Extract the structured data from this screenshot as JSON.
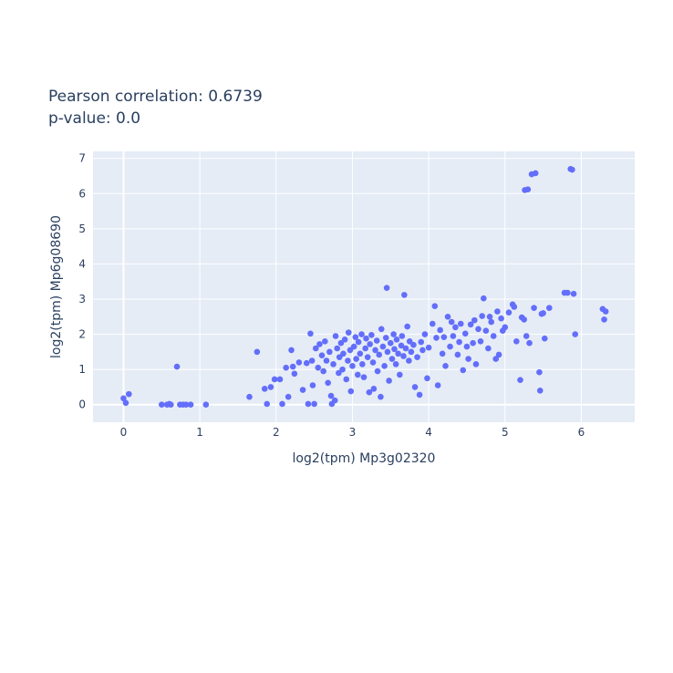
{
  "chart_data": {
    "type": "scatter",
    "title_lines": [
      "Pearson correlation: 0.6739",
      "p-value: 0.0"
    ],
    "xlabel": "log2(tpm) Mp3g02320",
    "ylabel": "log2(tpm) Mp6g08690",
    "xlim": [
      -0.4,
      6.7
    ],
    "ylim": [
      -0.5,
      7.2
    ],
    "xticks": [
      0,
      1,
      2,
      3,
      4,
      5,
      6
    ],
    "yticks": [
      0,
      1,
      2,
      3,
      4,
      5,
      6,
      7
    ],
    "grid": true,
    "marker_color": "#636efa",
    "plot_bgcolor": "#e5ecf6",
    "series": [
      {
        "points": [
          [
            0.0,
            0.18
          ],
          [
            0.03,
            0.05
          ],
          [
            0.07,
            0.3
          ],
          [
            0.5,
            0.0
          ],
          [
            0.57,
            0.0
          ],
          [
            0.6,
            0.02
          ],
          [
            0.62,
            0.0
          ],
          [
            0.7,
            1.08
          ],
          [
            0.74,
            0.0
          ],
          [
            0.78,
            0.0
          ],
          [
            0.82,
            0.0
          ],
          [
            0.88,
            0.0
          ],
          [
            1.08,
            0.0
          ],
          [
            1.65,
            0.22
          ],
          [
            1.75,
            1.5
          ],
          [
            1.85,
            0.45
          ],
          [
            1.88,
            0.02
          ],
          [
            1.93,
            0.5
          ],
          [
            1.98,
            0.72
          ],
          [
            2.05,
            0.72
          ],
          [
            2.08,
            0.02
          ],
          [
            2.13,
            1.05
          ],
          [
            2.16,
            0.22
          ],
          [
            2.2,
            1.55
          ],
          [
            2.22,
            1.08
          ],
          [
            2.24,
            0.88
          ],
          [
            2.3,
            1.2
          ],
          [
            2.35,
            0.42
          ],
          [
            2.4,
            1.18
          ],
          [
            2.42,
            0.02
          ],
          [
            2.45,
            2.02
          ],
          [
            2.47,
            1.25
          ],
          [
            2.48,
            0.55
          ],
          [
            2.5,
            0.02
          ],
          [
            2.52,
            1.6
          ],
          [
            2.55,
            1.05
          ],
          [
            2.57,
            1.72
          ],
          [
            2.6,
            1.4
          ],
          [
            2.62,
            0.95
          ],
          [
            2.64,
            1.8
          ],
          [
            2.66,
            1.25
          ],
          [
            2.68,
            0.62
          ],
          [
            2.7,
            1.5
          ],
          [
            2.72,
            0.25
          ],
          [
            2.73,
            0.02
          ],
          [
            2.75,
            1.15
          ],
          [
            2.77,
            0.12
          ],
          [
            2.78,
            1.95
          ],
          [
            2.8,
            1.6
          ],
          [
            2.82,
            0.9
          ],
          [
            2.83,
            1.35
          ],
          [
            2.85,
            1.75
          ],
          [
            2.87,
            1.0
          ],
          [
            2.88,
            1.45
          ],
          [
            2.9,
            1.85
          ],
          [
            2.92,
            0.72
          ],
          [
            2.94,
            1.25
          ],
          [
            2.95,
            2.05
          ],
          [
            2.97,
            1.55
          ],
          [
            2.98,
            0.38
          ],
          [
            3.0,
            1.1
          ],
          [
            3.02,
            1.65
          ],
          [
            3.04,
            1.92
          ],
          [
            3.05,
            1.3
          ],
          [
            3.07,
            0.85
          ],
          [
            3.08,
            1.78
          ],
          [
            3.1,
            1.45
          ],
          [
            3.12,
            2.0
          ],
          [
            3.13,
            1.15
          ],
          [
            3.15,
            0.78
          ],
          [
            3.17,
            1.6
          ],
          [
            3.18,
            1.88
          ],
          [
            3.2,
            1.35
          ],
          [
            3.22,
            0.35
          ],
          [
            3.23,
            1.72
          ],
          [
            3.25,
            1.98
          ],
          [
            3.27,
            1.2
          ],
          [
            3.28,
            0.45
          ],
          [
            3.3,
            1.55
          ],
          [
            3.32,
            1.82
          ],
          [
            3.33,
            0.95
          ],
          [
            3.35,
            1.42
          ],
          [
            3.37,
            0.22
          ],
          [
            3.38,
            2.15
          ],
          [
            3.4,
            1.65
          ],
          [
            3.42,
            1.1
          ],
          [
            3.44,
            1.9
          ],
          [
            3.45,
            3.32
          ],
          [
            3.46,
            1.5
          ],
          [
            3.48,
            0.68
          ],
          [
            3.5,
            1.75
          ],
          [
            3.52,
            1.3
          ],
          [
            3.54,
            2.0
          ],
          [
            3.55,
            1.58
          ],
          [
            3.57,
            1.15
          ],
          [
            3.58,
            1.85
          ],
          [
            3.6,
            1.45
          ],
          [
            3.62,
            0.85
          ],
          [
            3.64,
            1.68
          ],
          [
            3.65,
            1.95
          ],
          [
            3.67,
            1.38
          ],
          [
            3.68,
            3.12
          ],
          [
            3.7,
            1.6
          ],
          [
            3.72,
            2.22
          ],
          [
            3.74,
            1.25
          ],
          [
            3.75,
            1.8
          ],
          [
            3.77,
            1.5
          ],
          [
            3.8,
            1.7
          ],
          [
            3.82,
            0.5
          ],
          [
            3.85,
            1.35
          ],
          [
            3.88,
            0.28
          ],
          [
            3.9,
            1.78
          ],
          [
            3.92,
            1.55
          ],
          [
            3.95,
            2.0
          ],
          [
            3.98,
            0.75
          ],
          [
            4.0,
            1.62
          ],
          [
            4.05,
            2.3
          ],
          [
            4.08,
            2.8
          ],
          [
            4.1,
            1.9
          ],
          [
            4.12,
            0.55
          ],
          [
            4.15,
            2.12
          ],
          [
            4.18,
            1.45
          ],
          [
            4.2,
            1.92
          ],
          [
            4.22,
            1.1
          ],
          [
            4.25,
            2.5
          ],
          [
            4.28,
            1.65
          ],
          [
            4.3,
            2.35
          ],
          [
            4.32,
            1.95
          ],
          [
            4.35,
            2.2
          ],
          [
            4.38,
            1.42
          ],
          [
            4.4,
            1.78
          ],
          [
            4.42,
            2.3
          ],
          [
            4.45,
            0.98
          ],
          [
            4.48,
            2.02
          ],
          [
            4.5,
            1.65
          ],
          [
            4.52,
            1.3
          ],
          [
            4.55,
            2.28
          ],
          [
            4.58,
            1.75
          ],
          [
            4.6,
            2.4
          ],
          [
            4.62,
            1.15
          ],
          [
            4.65,
            2.15
          ],
          [
            4.68,
            1.8
          ],
          [
            4.7,
            2.52
          ],
          [
            4.72,
            3.02
          ],
          [
            4.75,
            2.1
          ],
          [
            4.78,
            1.6
          ],
          [
            4.8,
            2.5
          ],
          [
            4.82,
            2.35
          ],
          [
            4.85,
            1.95
          ],
          [
            4.88,
            1.3
          ],
          [
            4.9,
            2.65
          ],
          [
            4.92,
            1.42
          ],
          [
            4.95,
            2.45
          ],
          [
            4.97,
            2.1
          ],
          [
            5.0,
            2.2
          ],
          [
            5.05,
            2.62
          ],
          [
            5.1,
            2.85
          ],
          [
            5.12,
            2.78
          ],
          [
            5.15,
            1.8
          ],
          [
            5.2,
            0.7
          ],
          [
            5.22,
            2.48
          ],
          [
            5.25,
            2.42
          ],
          [
            5.26,
            6.1
          ],
          [
            5.28,
            1.95
          ],
          [
            5.3,
            6.12
          ],
          [
            5.32,
            1.75
          ],
          [
            5.35,
            6.55
          ],
          [
            5.38,
            2.75
          ],
          [
            5.4,
            6.58
          ],
          [
            5.45,
            0.92
          ],
          [
            5.46,
            0.4
          ],
          [
            5.48,
            2.58
          ],
          [
            5.5,
            2.6
          ],
          [
            5.52,
            1.88
          ],
          [
            5.58,
            2.75
          ],
          [
            5.78,
            3.18
          ],
          [
            5.82,
            3.18
          ],
          [
            5.86,
            6.7
          ],
          [
            5.88,
            6.68
          ],
          [
            5.9,
            3.15
          ],
          [
            5.92,
            2.0
          ],
          [
            6.28,
            2.72
          ],
          [
            6.3,
            2.42
          ],
          [
            6.32,
            2.65
          ]
        ]
      }
    ]
  }
}
